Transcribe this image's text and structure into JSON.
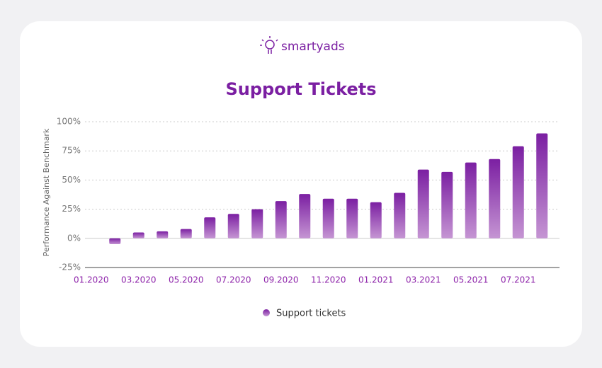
{
  "brand": "smartyads",
  "chart_data": {
    "type": "bar",
    "title": "Support Tickets",
    "ylabel": "Performance Against Benchmark",
    "categories": [
      "01.2020",
      null,
      "03.2020",
      null,
      "05.2020",
      null,
      "07.2020",
      null,
      "09.2020",
      null,
      "11.2020",
      null,
      "01.2021",
      null,
      "03.2021",
      null,
      "05.2021",
      null,
      "07.2021",
      null
    ],
    "series": [
      {
        "name": "Support tickets",
        "color": "#7b1fa2",
        "values": [
          null,
          -5,
          5,
          6,
          8,
          18,
          21,
          25,
          32,
          38,
          34,
          34,
          31,
          39,
          59,
          57,
          65,
          68,
          79,
          90
        ]
      }
    ],
    "ylim": [
      -25,
      100
    ],
    "yticks": [
      {
        "value": -25,
        "label": "-25%"
      },
      {
        "value": 0,
        "label": "0%"
      },
      {
        "value": 25,
        "label": "25%"
      },
      {
        "value": 50,
        "label": "50%"
      },
      {
        "value": 75,
        "label": "75%"
      },
      {
        "value": 100,
        "label": "100%"
      }
    ],
    "grid": true,
    "legend": "bottom"
  }
}
